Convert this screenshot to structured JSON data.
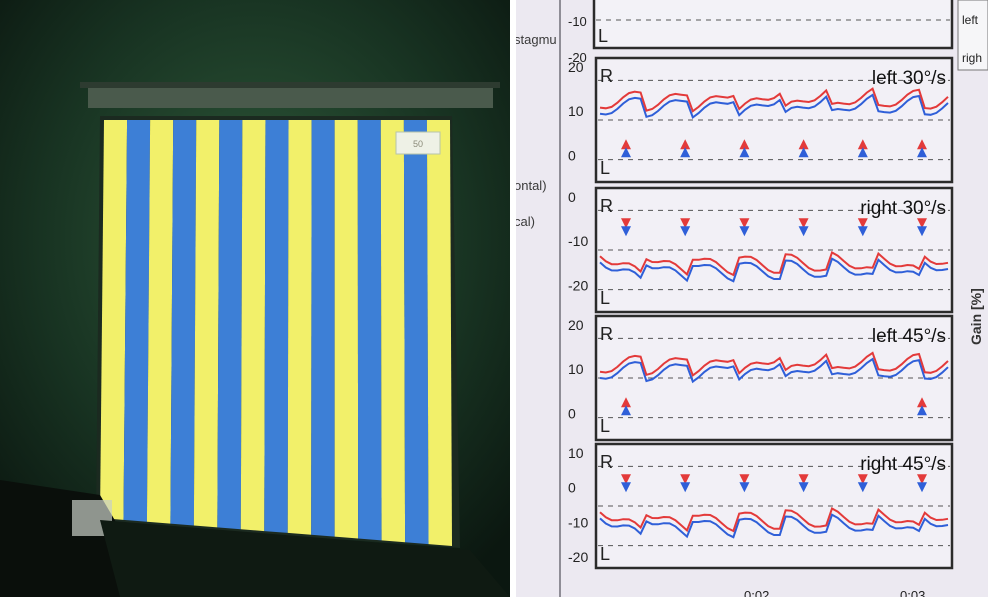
{
  "left_photo": {
    "stripe_colors": {
      "yellow": "#f2f06a",
      "blue": "#3d7fd6"
    },
    "stripe_count": 15,
    "screen_tag": "50"
  },
  "right_photo": {
    "side_labels": {
      "top_cut": "stagmu",
      "horizontal_cut": "ontal)",
      "vertical_cut": "cal)",
      "gain_axis": "Gain [%]",
      "legend_top": "left",
      "legend_bottom": "righ"
    },
    "top_panel_ticks": [
      "-10",
      "-20"
    ],
    "panels": [
      {
        "title": "left 30°/s",
        "R": "R",
        "L": "L",
        "ticks": [
          "20",
          "10",
          "0"
        ]
      },
      {
        "title": "right 30°/s",
        "R": "R",
        "L": "L",
        "ticks": [
          "0",
          "-10",
          "-20"
        ]
      },
      {
        "title": "left 45°/s",
        "R": "R",
        "L": "L",
        "ticks": [
          "20",
          "10",
          "0"
        ]
      },
      {
        "title": "right 45°/s",
        "R": "R",
        "L": "L",
        "ticks": [
          "10",
          "0",
          "-10",
          "-20"
        ]
      }
    ],
    "time_labels": [
      "0:02",
      "0:03"
    ],
    "colors": {
      "red": "#e33a3a",
      "blue": "#2f5fd8",
      "frame": "#2b2b2b",
      "bg": "#f2f0f6"
    }
  }
}
